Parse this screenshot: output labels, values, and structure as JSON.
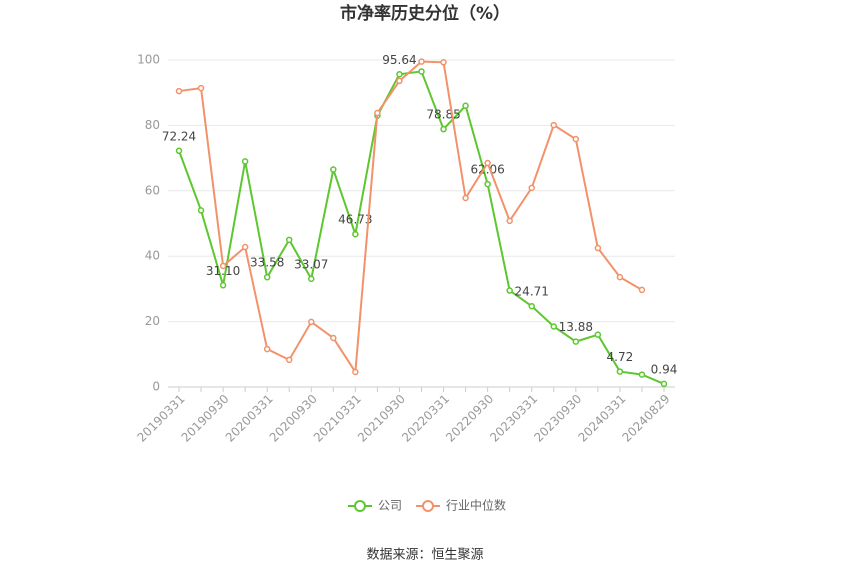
{
  "chart_data": {
    "type": "line",
    "title": "市净率历史分位（%）",
    "source": "数据来源：恒生聚源",
    "categories": [
      "20190331",
      null,
      "20190930",
      null,
      "20200331",
      null,
      "20200930",
      null,
      "20210331",
      null,
      "20210930",
      null,
      "20220331",
      null,
      "20220930",
      null,
      "20230331",
      null,
      "20230930",
      null,
      "20240331",
      null,
      "20240829"
    ],
    "ylim": [
      0,
      100
    ],
    "yticks": [
      0,
      20,
      40,
      60,
      80,
      100
    ],
    "grid": true,
    "legend": "bottom",
    "series": [
      {
        "name": "公司",
        "color": "#5cc72e",
        "values": [
          72.24,
          54,
          31.1,
          69,
          33.58,
          45,
          33.07,
          66.5,
          46.73,
          83,
          95.64,
          96.5,
          78.85,
          86,
          62.06,
          29.5,
          24.71,
          18.5,
          13.88,
          16,
          4.72,
          3.8,
          0.94
        ],
        "value_labels": [
          "72.24",
          null,
          "31.10",
          null,
          "33.58",
          null,
          "33.07",
          null,
          "46.73",
          null,
          "95.64",
          null,
          "78.85",
          null,
          "62.06",
          null,
          "24.71",
          null,
          "13.88",
          null,
          "4.72",
          null,
          "0.94"
        ]
      },
      {
        "name": "行业中位数",
        "color": "#f3926a",
        "values": [
          90.5,
          91.4,
          37,
          42.8,
          11.6,
          8.3,
          19.9,
          15,
          4.6,
          83.8,
          93.6,
          99.5,
          99.3,
          57.8,
          68.5,
          50.8,
          60.9,
          80.1,
          75.8,
          42.5,
          33.6,
          29.7,
          null
        ]
      }
    ]
  }
}
